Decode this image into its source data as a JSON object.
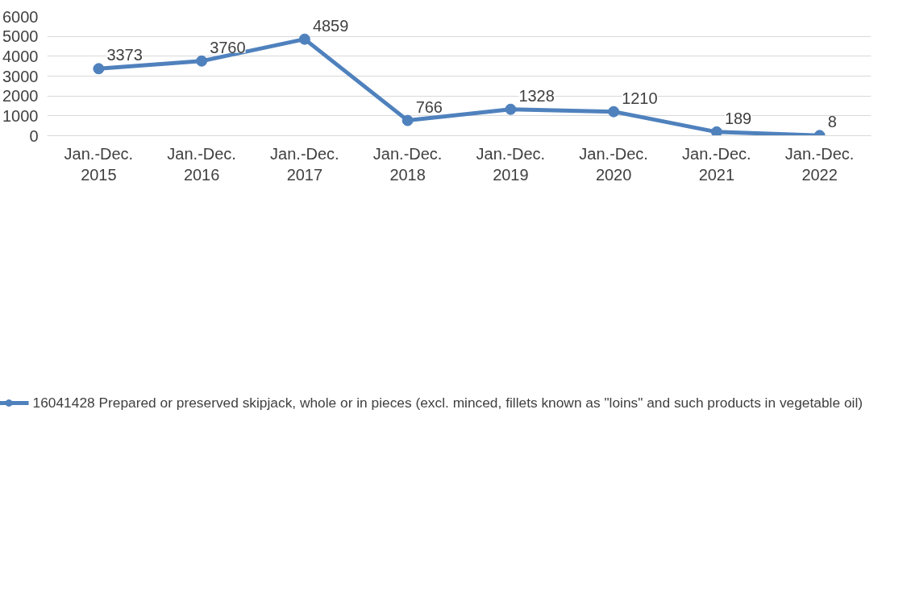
{
  "chart_data": {
    "type": "line",
    "categories": [
      "Jan.-Dec. 2015",
      "Jan.-Dec. 2016",
      "Jan.-Dec. 2017",
      "Jan.-Dec. 2018",
      "Jan.-Dec. 2019",
      "Jan.-Dec. 2020",
      "Jan.-Dec. 2021",
      "Jan.-Dec. 2022"
    ],
    "series": [
      {
        "name": "16041428 Prepared or preserved skipjack, whole or in pieces (excl. minced, fillets known as \"loins\" and such products in vegetable oil)",
        "color": "#4f81bd",
        "values": [
          3373,
          3760,
          4859,
          766,
          1328,
          1210,
          189,
          8
        ]
      }
    ],
    "ylim": [
      0,
      6000
    ],
    "yticks": [
      0,
      1000,
      2000,
      3000,
      4000,
      5000,
      6000
    ],
    "grid": "y",
    "legend": "bottom",
    "marker": "circle",
    "line_style": "solid",
    "data_labels": true
  }
}
